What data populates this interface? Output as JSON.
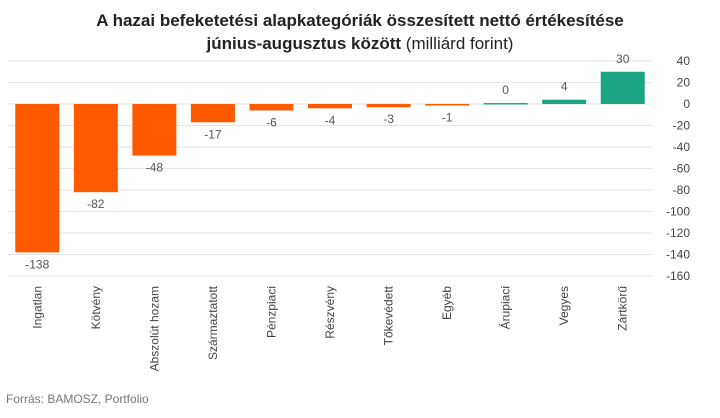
{
  "title": {
    "line1": "A hazai befeketetési alapkategóriák összesített nettó értékesítése",
    "line2_bold": "június-augusztus között",
    "line2_normal": " (milliárd forint)"
  },
  "source": "Forrás: BAMOSZ,  Portfolio",
  "colors": {
    "negative": "#ff5a00",
    "positive": "#1aa683",
    "grid": "#e4e4e4",
    "axis_text": "#444444",
    "label_text": "#555555"
  },
  "chart_data": {
    "type": "bar",
    "categories": [
      "Ingatlan",
      "Kötvény",
      "Abszolút hozam",
      "Származtatott",
      "Pénzpiaci",
      "Részvény",
      "Tőkevédett",
      "Egyéb",
      "Árupiaci",
      "Vegyes",
      "Zártkörű"
    ],
    "values": [
      -138,
      -82,
      -48,
      -17,
      -6,
      -4,
      -3,
      -1,
      0,
      4,
      30
    ],
    "ylim": [
      -160,
      40
    ],
    "yticks": [
      40,
      20,
      0,
      -20,
      -40,
      -60,
      -80,
      -100,
      -120,
      -140,
      -160
    ],
    "y_axis_position": "right",
    "grid": true,
    "data_labels": true
  }
}
